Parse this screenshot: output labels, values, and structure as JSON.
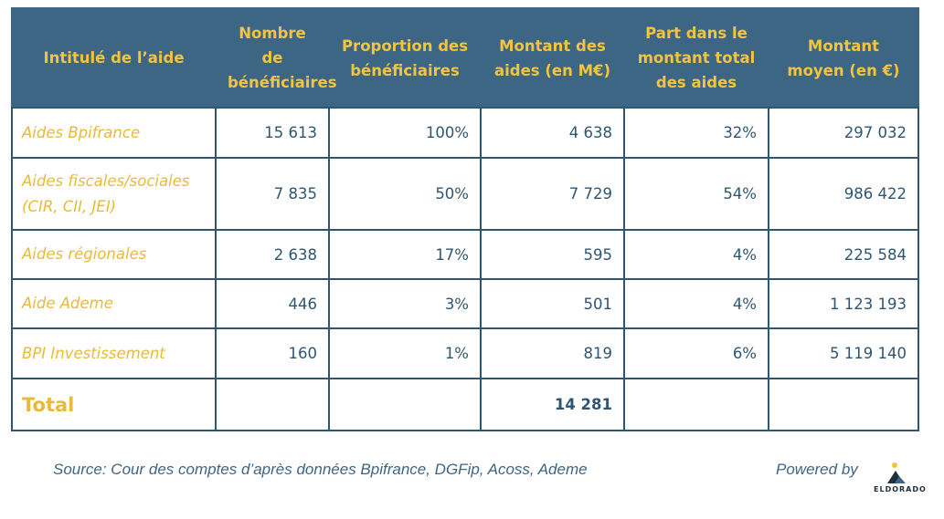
{
  "table": {
    "headers": [
      "Intitulé de l’aide",
      "Nombre de bénéficiaires",
      "Proportion des bénéficiaires",
      "Montant des aides (en M€)",
      "Part dans le montant total des aides",
      "Montant moyen (en €)"
    ],
    "rows": [
      [
        "Aides Bpifrance",
        "15 613",
        "100%",
        "4 638",
        "32%",
        "297 032"
      ],
      [
        "Aides fiscales/sociales (CIR, CII, JEI)",
        "7 835",
        "50%",
        "7 729",
        "54%",
        "986 422"
      ],
      [
        "Aides régionales",
        "2 638",
        "17%",
        "595",
        "4%",
        "225 584"
      ],
      [
        "Aide Ademe",
        "446",
        "3%",
        "501",
        "4%",
        "1 123 193"
      ],
      [
        "BPI Investissement",
        "160",
        "1%",
        "819",
        "6%",
        "5 119 140"
      ]
    ],
    "total_label": "Total",
    "total_amount": "14 281"
  },
  "footer": {
    "source": "Source: Cour des comptes d’après données Bpifrance, DGFip, Acoss, Ademe",
    "powered_by": "Powered by",
    "logo_text": "ELDORADO"
  },
  "colors": {
    "header_bg": "#3d6584",
    "header_text": "#f2c43f",
    "label_text": "#e8b93a",
    "value_text": "#2f5670"
  }
}
